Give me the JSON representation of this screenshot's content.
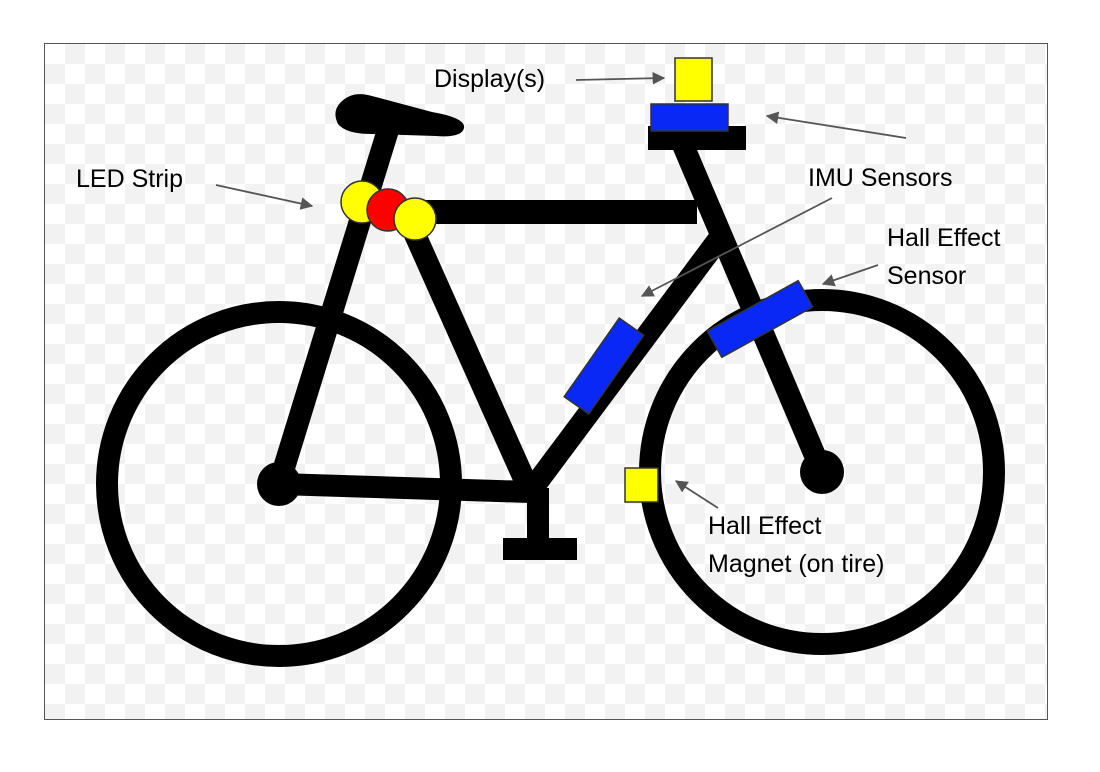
{
  "labels": {
    "display": "Display(s)",
    "led_strip": "LED Strip",
    "imu_sensors": "IMU Sensors",
    "hall_sensor_line1": "Hall Effect",
    "hall_sensor_line2": "Sensor",
    "hall_magnet_line1": "Hall Effect",
    "hall_magnet_line2": "Magnet (on tire)"
  },
  "colors": {
    "frame": "#000000",
    "sensor_blue": "#0a28f5",
    "led_yellow": "#ffff00",
    "led_red": "#ff0000",
    "magnet_yellow": "#ffff00",
    "arrow": "#555555"
  }
}
